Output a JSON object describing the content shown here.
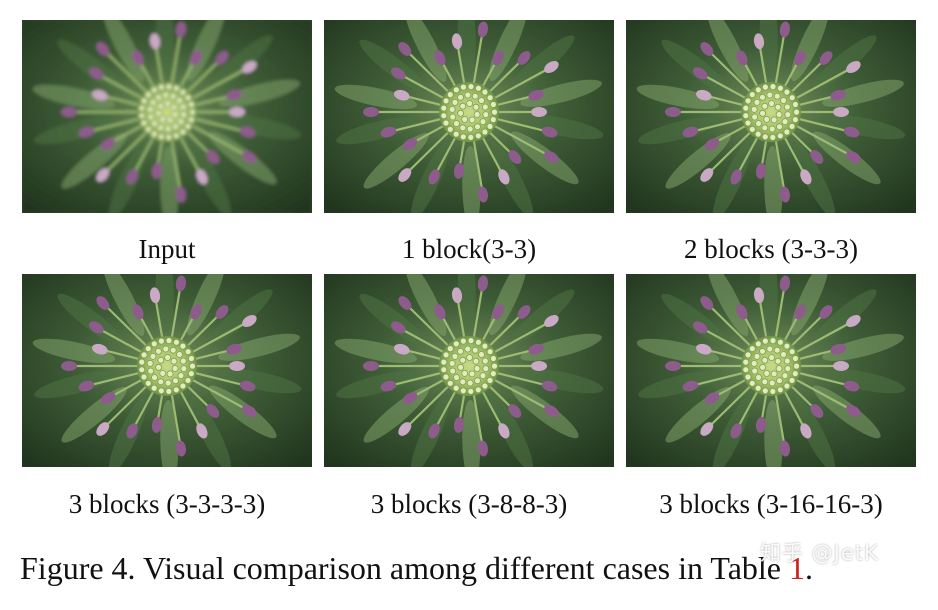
{
  "figure": {
    "panels": [
      {
        "label": "Input",
        "sharp": false
      },
      {
        "label": "1 block(3-3)",
        "sharp": true
      },
      {
        "label": "2 blocks (3-3-3)",
        "sharp": true
      },
      {
        "label": "3 blocks (3-3-3-3)",
        "sharp": true
      },
      {
        "label": "3 blocks (3-8-8-3)",
        "sharp": true
      },
      {
        "label": "3 blocks (3-16-16-3)",
        "sharp": true
      }
    ],
    "caption_text": "Figure 4. Visual comparison among different cases in Table ",
    "caption_ref": "1",
    "caption_end": "."
  },
  "watermark": "知乎 @JetK",
  "colors": {
    "reference_link": "#d0201a",
    "foliage_dark": "#2c4528",
    "foliage_light": "#7fa36a",
    "bud_purple": "#8e5c8c",
    "flower_center": "#b8cf7a"
  }
}
